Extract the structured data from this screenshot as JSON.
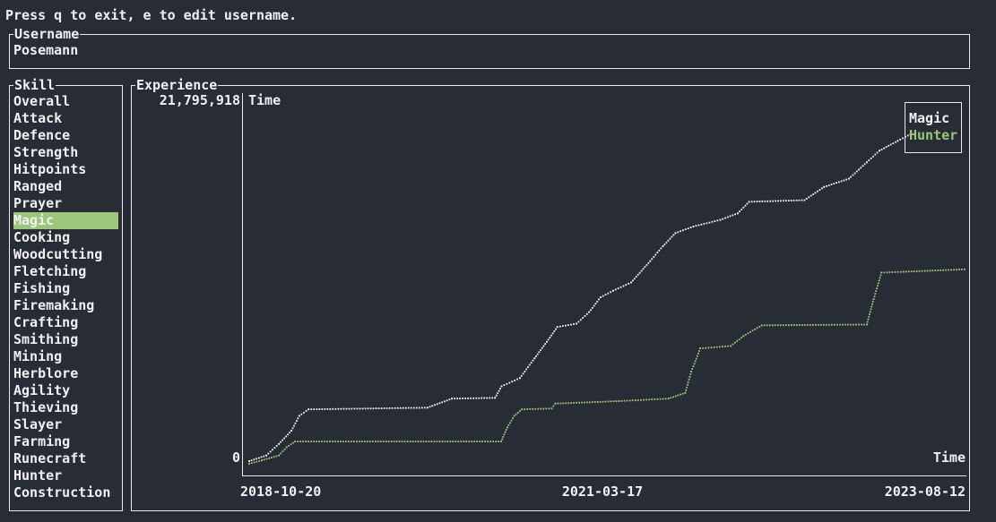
{
  "help_text": "Press q to exit, e to edit username.",
  "username": {
    "title": "Username",
    "value": "Posemann"
  },
  "skills": {
    "title": "Skill",
    "selected": "Magic",
    "items": [
      "Overall",
      "Attack",
      "Defence",
      "Strength",
      "Hitpoints",
      "Ranged",
      "Prayer",
      "Magic",
      "Cooking",
      "Woodcutting",
      "Fletching",
      "Fishing",
      "Firemaking",
      "Crafting",
      "Smithing",
      "Mining",
      "Herblore",
      "Agility",
      "Thieving",
      "Slayer",
      "Farming",
      "Runecraft",
      "Hunter",
      "Construction"
    ]
  },
  "experience": {
    "title": "Experience",
    "y_max_label": "21,795,918",
    "y_min_label": "0",
    "y_axis_title": "Time",
    "x_axis_title": "Time",
    "x_labels": [
      "2018-10-20",
      "2021-03-17",
      "2023-08-12"
    ],
    "legend": [
      {
        "name": "Magic",
        "color": "#eef0f3"
      },
      {
        "name": "Hunter",
        "color": "#9ac779"
      }
    ]
  },
  "chart_data": {
    "type": "line",
    "title": "Experience",
    "xlabel": "Time",
    "ylabel": "Time",
    "x_ticks": [
      "2018-10-20",
      "2021-03-17",
      "2023-08-12"
    ],
    "xlim": [
      "2018-10-20",
      "2023-08-12"
    ],
    "ylim": [
      0,
      21795918
    ],
    "y_ticks": [
      "0",
      "21,795,918"
    ],
    "legend_position": "top-right",
    "series": [
      {
        "name": "Magic",
        "color": "#eef0f3",
        "points": [
          [
            "2018-10-20",
            150000
          ],
          [
            "2018-12-01",
            500000
          ],
          [
            "2019-01-01",
            1200000
          ],
          [
            "2019-02-01",
            2000000
          ],
          [
            "2019-02-20",
            2900000
          ],
          [
            "2019-03-15",
            3300000
          ],
          [
            "2020-01-01",
            3400000
          ],
          [
            "2020-03-01",
            3950000
          ],
          [
            "2020-06-15",
            4000000
          ],
          [
            "2020-07-01",
            4700000
          ],
          [
            "2020-08-15",
            5200000
          ],
          [
            "2020-09-20",
            6400000
          ],
          [
            "2020-10-20",
            7400000
          ],
          [
            "2020-11-15",
            8300000
          ],
          [
            "2021-01-01",
            8500000
          ],
          [
            "2021-02-01",
            9200000
          ],
          [
            "2021-03-01",
            10100000
          ],
          [
            "2021-04-01",
            10500000
          ],
          [
            "2021-05-15",
            11000000
          ],
          [
            "2021-07-01",
            12300000
          ],
          [
            "2021-08-01",
            13200000
          ],
          [
            "2021-09-01",
            14000000
          ],
          [
            "2021-10-15",
            14400000
          ],
          [
            "2021-12-20",
            14800000
          ],
          [
            "2022-02-01",
            15200000
          ],
          [
            "2022-03-01",
            15900000
          ],
          [
            "2022-07-15",
            16000000
          ],
          [
            "2022-09-01",
            16800000
          ],
          [
            "2022-11-01",
            17300000
          ],
          [
            "2022-12-15",
            18300000
          ],
          [
            "2023-01-15",
            19000000
          ],
          [
            "2023-03-01",
            19600000
          ],
          [
            "2023-04-01",
            20000000
          ]
        ]
      },
      {
        "name": "Hunter",
        "color": "#9ac779",
        "points": [
          [
            "2018-10-20",
            0
          ],
          [
            "2018-11-20",
            200000
          ],
          [
            "2019-01-01",
            500000
          ],
          [
            "2019-01-20",
            1000000
          ],
          [
            "2019-02-10",
            1350000
          ],
          [
            "2020-06-30",
            1350000
          ],
          [
            "2020-07-15",
            2200000
          ],
          [
            "2020-08-01",
            2900000
          ],
          [
            "2020-08-20",
            3300000
          ],
          [
            "2020-11-01",
            3350000
          ],
          [
            "2020-11-10",
            3650000
          ],
          [
            "2021-04-15",
            3800000
          ],
          [
            "2021-08-15",
            3950000
          ],
          [
            "2021-09-25",
            4300000
          ],
          [
            "2021-10-10",
            5600000
          ],
          [
            "2021-11-01",
            7000000
          ],
          [
            "2022-01-15",
            7150000
          ],
          [
            "2022-02-15",
            7750000
          ],
          [
            "2022-04-01",
            8400000
          ],
          [
            "2022-12-15",
            8450000
          ],
          [
            "2023-01-01",
            10000000
          ],
          [
            "2023-01-20",
            11600000
          ],
          [
            "2023-03-15",
            11650000
          ],
          [
            "2023-08-12",
            11800000
          ]
        ]
      }
    ]
  }
}
